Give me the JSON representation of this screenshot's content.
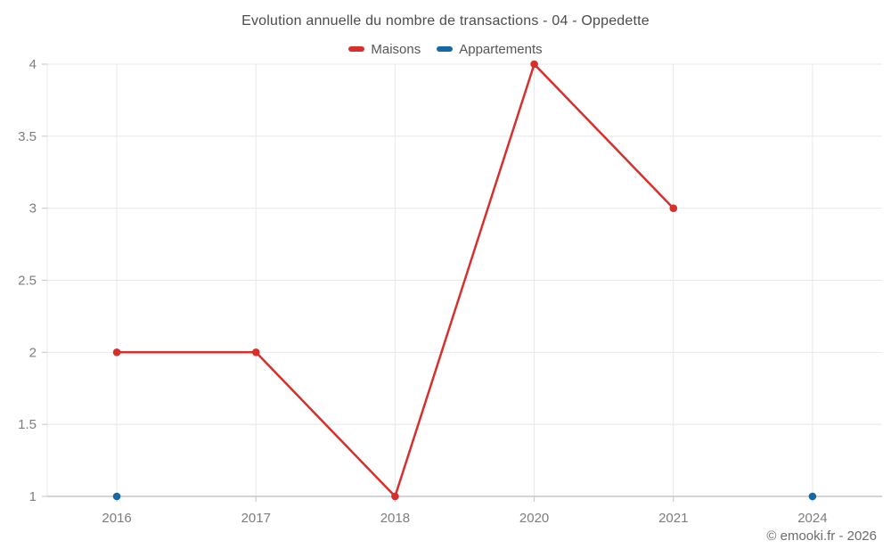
{
  "footer": "© emooki.fr - 2026",
  "colors": {
    "maisons_red": "#d6302c",
    "appartements_blue": "#1668a5",
    "gridline": "#e8e8e8",
    "axis_line": "#c6c6c6",
    "tick_text": "#7d7d7d",
    "title_text": "#4c4c4c"
  },
  "chart_data": {
    "type": "line",
    "title": "Evolution annuelle du nombre de transactions - 04 - Oppedette",
    "categories": [
      "2016",
      "2017",
      "2018",
      "2020",
      "2021",
      "2024"
    ],
    "series": [
      {
        "name": "Maisons",
        "color": "#d6302c",
        "values": [
          2,
          2,
          1,
          4,
          3,
          null
        ]
      },
      {
        "name": "Appartements",
        "color": "#1668a5",
        "values": [
          1,
          null,
          null,
          null,
          null,
          1
        ]
      }
    ],
    "xlabel": "",
    "ylabel": "",
    "ylim": [
      1,
      4
    ],
    "yticks": [
      1,
      1.5,
      2,
      2.5,
      3,
      3.5,
      4
    ],
    "grid": true,
    "legend_position": "top"
  }
}
